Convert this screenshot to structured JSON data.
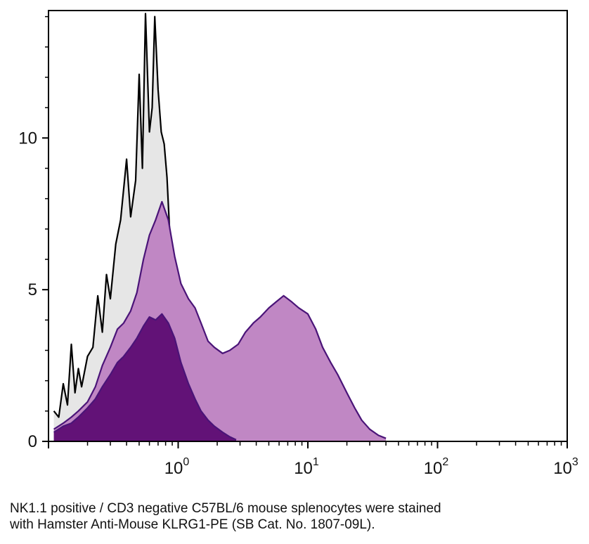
{
  "chart_data": {
    "type": "area",
    "title": "",
    "xlabel": "",
    "ylabel": "",
    "xscale": "log",
    "xlim": [
      0.1,
      1000
    ],
    "ylim": [
      0,
      14.2
    ],
    "x_ticks": [
      {
        "value": 1,
        "base": "10",
        "exp": "0"
      },
      {
        "value": 10,
        "base": "10",
        "exp": "1"
      },
      {
        "value": 100,
        "base": "10",
        "exp": "2"
      },
      {
        "value": 1000,
        "base": "10",
        "exp": "3"
      }
    ],
    "y_ticks": [
      {
        "value": 0,
        "label": "0"
      },
      {
        "value": 5,
        "label": "5"
      },
      {
        "value": 10,
        "label": "10"
      }
    ],
    "grid": false,
    "legend": "none",
    "series": [
      {
        "role": "control",
        "fill": "#e6e6e6",
        "stroke": "#000000",
        "x": [
          0.11,
          0.12,
          0.13,
          0.14,
          0.15,
          0.16,
          0.17,
          0.18,
          0.2,
          0.22,
          0.24,
          0.26,
          0.28,
          0.3,
          0.33,
          0.36,
          0.4,
          0.43,
          0.47,
          0.5,
          0.53,
          0.56,
          0.6,
          0.63,
          0.66,
          0.7,
          0.74,
          0.78,
          0.82,
          0.87,
          0.92,
          1.0,
          1.07,
          1.15,
          1.25,
          1.35,
          1.5,
          1.7,
          1.9,
          2.2,
          2.5,
          2.9,
          3.3
        ],
        "y": [
          1.0,
          0.8,
          1.9,
          1.2,
          3.2,
          1.6,
          2.4,
          1.8,
          2.8,
          3.1,
          4.8,
          3.6,
          5.5,
          4.7,
          6.5,
          7.3,
          9.3,
          7.4,
          8.6,
          12.1,
          9.0,
          14.1,
          10.2,
          11.0,
          14.0,
          11.6,
          10.2,
          9.8,
          8.7,
          6.5,
          5.3,
          3.4,
          3.6,
          2.6,
          2.1,
          1.9,
          1.4,
          0.9,
          0.8,
          0.6,
          0.4,
          0.3,
          0.1
        ]
      },
      {
        "role": "KLRG1-PE",
        "fill": "#c087c4",
        "stroke": "#4a1478",
        "x": [
          0.11,
          0.13,
          0.15,
          0.17,
          0.2,
          0.23,
          0.26,
          0.3,
          0.34,
          0.38,
          0.43,
          0.48,
          0.54,
          0.6,
          0.67,
          0.75,
          0.84,
          0.94,
          1.05,
          1.2,
          1.35,
          1.5,
          1.7,
          1.9,
          2.2,
          2.5,
          2.9,
          3.3,
          3.8,
          4.3,
          5.0,
          5.7,
          6.5,
          7.5,
          8.5,
          10,
          11.5,
          13,
          15,
          17,
          20,
          23,
          26,
          30,
          35,
          40
        ],
        "y": [
          0.4,
          0.6,
          0.8,
          1.0,
          1.3,
          1.8,
          2.5,
          3.1,
          3.7,
          3.9,
          4.3,
          4.9,
          6.0,
          6.8,
          7.3,
          7.9,
          7.3,
          6.1,
          5.2,
          4.7,
          4.4,
          3.9,
          3.3,
          3.1,
          2.9,
          3.0,
          3.2,
          3.6,
          3.9,
          4.1,
          4.4,
          4.6,
          4.8,
          4.6,
          4.4,
          4.2,
          3.7,
          3.1,
          2.6,
          2.2,
          1.6,
          1.1,
          0.7,
          0.4,
          0.2,
          0.1
        ]
      },
      {
        "role": "KLRG1-PE low",
        "fill": "#621277",
        "stroke": "#4a1478",
        "x": [
          0.11,
          0.13,
          0.15,
          0.17,
          0.2,
          0.23,
          0.26,
          0.3,
          0.34,
          0.38,
          0.43,
          0.48,
          0.54,
          0.6,
          0.67,
          0.75,
          0.84,
          0.94,
          1.05,
          1.2,
          1.35,
          1.5,
          1.7,
          1.9,
          2.2,
          2.5,
          2.8
        ],
        "y": [
          0.3,
          0.5,
          0.6,
          0.8,
          1.1,
          1.4,
          1.8,
          2.2,
          2.6,
          2.8,
          3.1,
          3.4,
          3.8,
          4.1,
          4.0,
          4.2,
          3.9,
          3.4,
          2.6,
          1.9,
          1.4,
          1.0,
          0.7,
          0.5,
          0.3,
          0.15,
          0.05
        ]
      }
    ]
  },
  "caption": {
    "line1": "NK1.1 positive / CD3 negative C57BL/6 mouse splenocytes were stained",
    "line2": "with Hamster Anti-Mouse KLRG1-PE (SB Cat. No. 1807-09L)."
  }
}
